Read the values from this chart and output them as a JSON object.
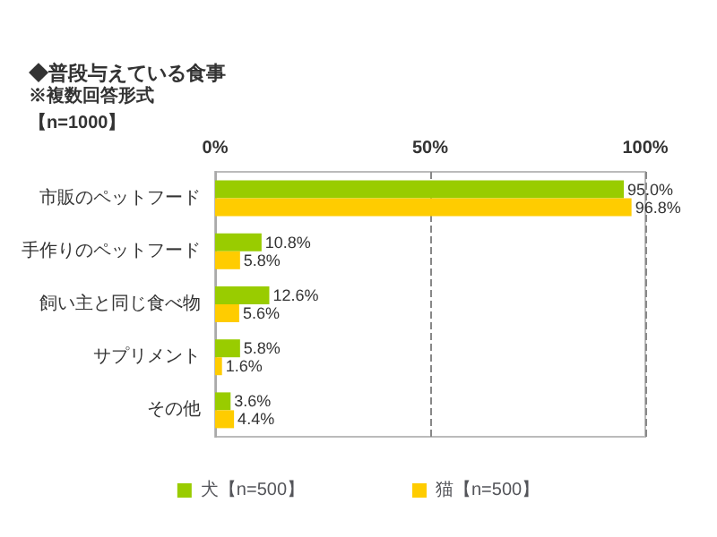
{
  "chart_data": {
    "type": "bar",
    "orientation": "horizontal",
    "title": "◆普段与えている食事",
    "subtitle": "※複数回答形式",
    "annotations": [
      "【n=1000】"
    ],
    "categories": [
      "市販のペットフード",
      "手作りのペットフード",
      "飼い主と同じ食べ物",
      "サプリメント",
      "その他"
    ],
    "series": [
      {
        "name": "犬【n=500】",
        "color": "#99cc00",
        "values": [
          95.0,
          10.8,
          12.6,
          5.8,
          3.6
        ],
        "value_labels": [
          "95.0%",
          "10.8%",
          "12.6%",
          "5.8%",
          "3.6%"
        ]
      },
      {
        "name": "猫【n=500】",
        "color": "#ffcc00",
        "values": [
          96.8,
          5.8,
          5.6,
          1.6,
          4.4
        ],
        "value_labels": [
          "96.8%",
          "5.8%",
          "5.6%",
          "1.6%",
          "4.4%"
        ]
      }
    ],
    "xlim": [
      0,
      100
    ],
    "xticks": [
      {
        "value": 0,
        "label": "0%"
      },
      {
        "value": 50,
        "label": "50%"
      },
      {
        "value": 100,
        "label": "100%"
      }
    ],
    "grid": "x",
    "legend": "bottom"
  }
}
